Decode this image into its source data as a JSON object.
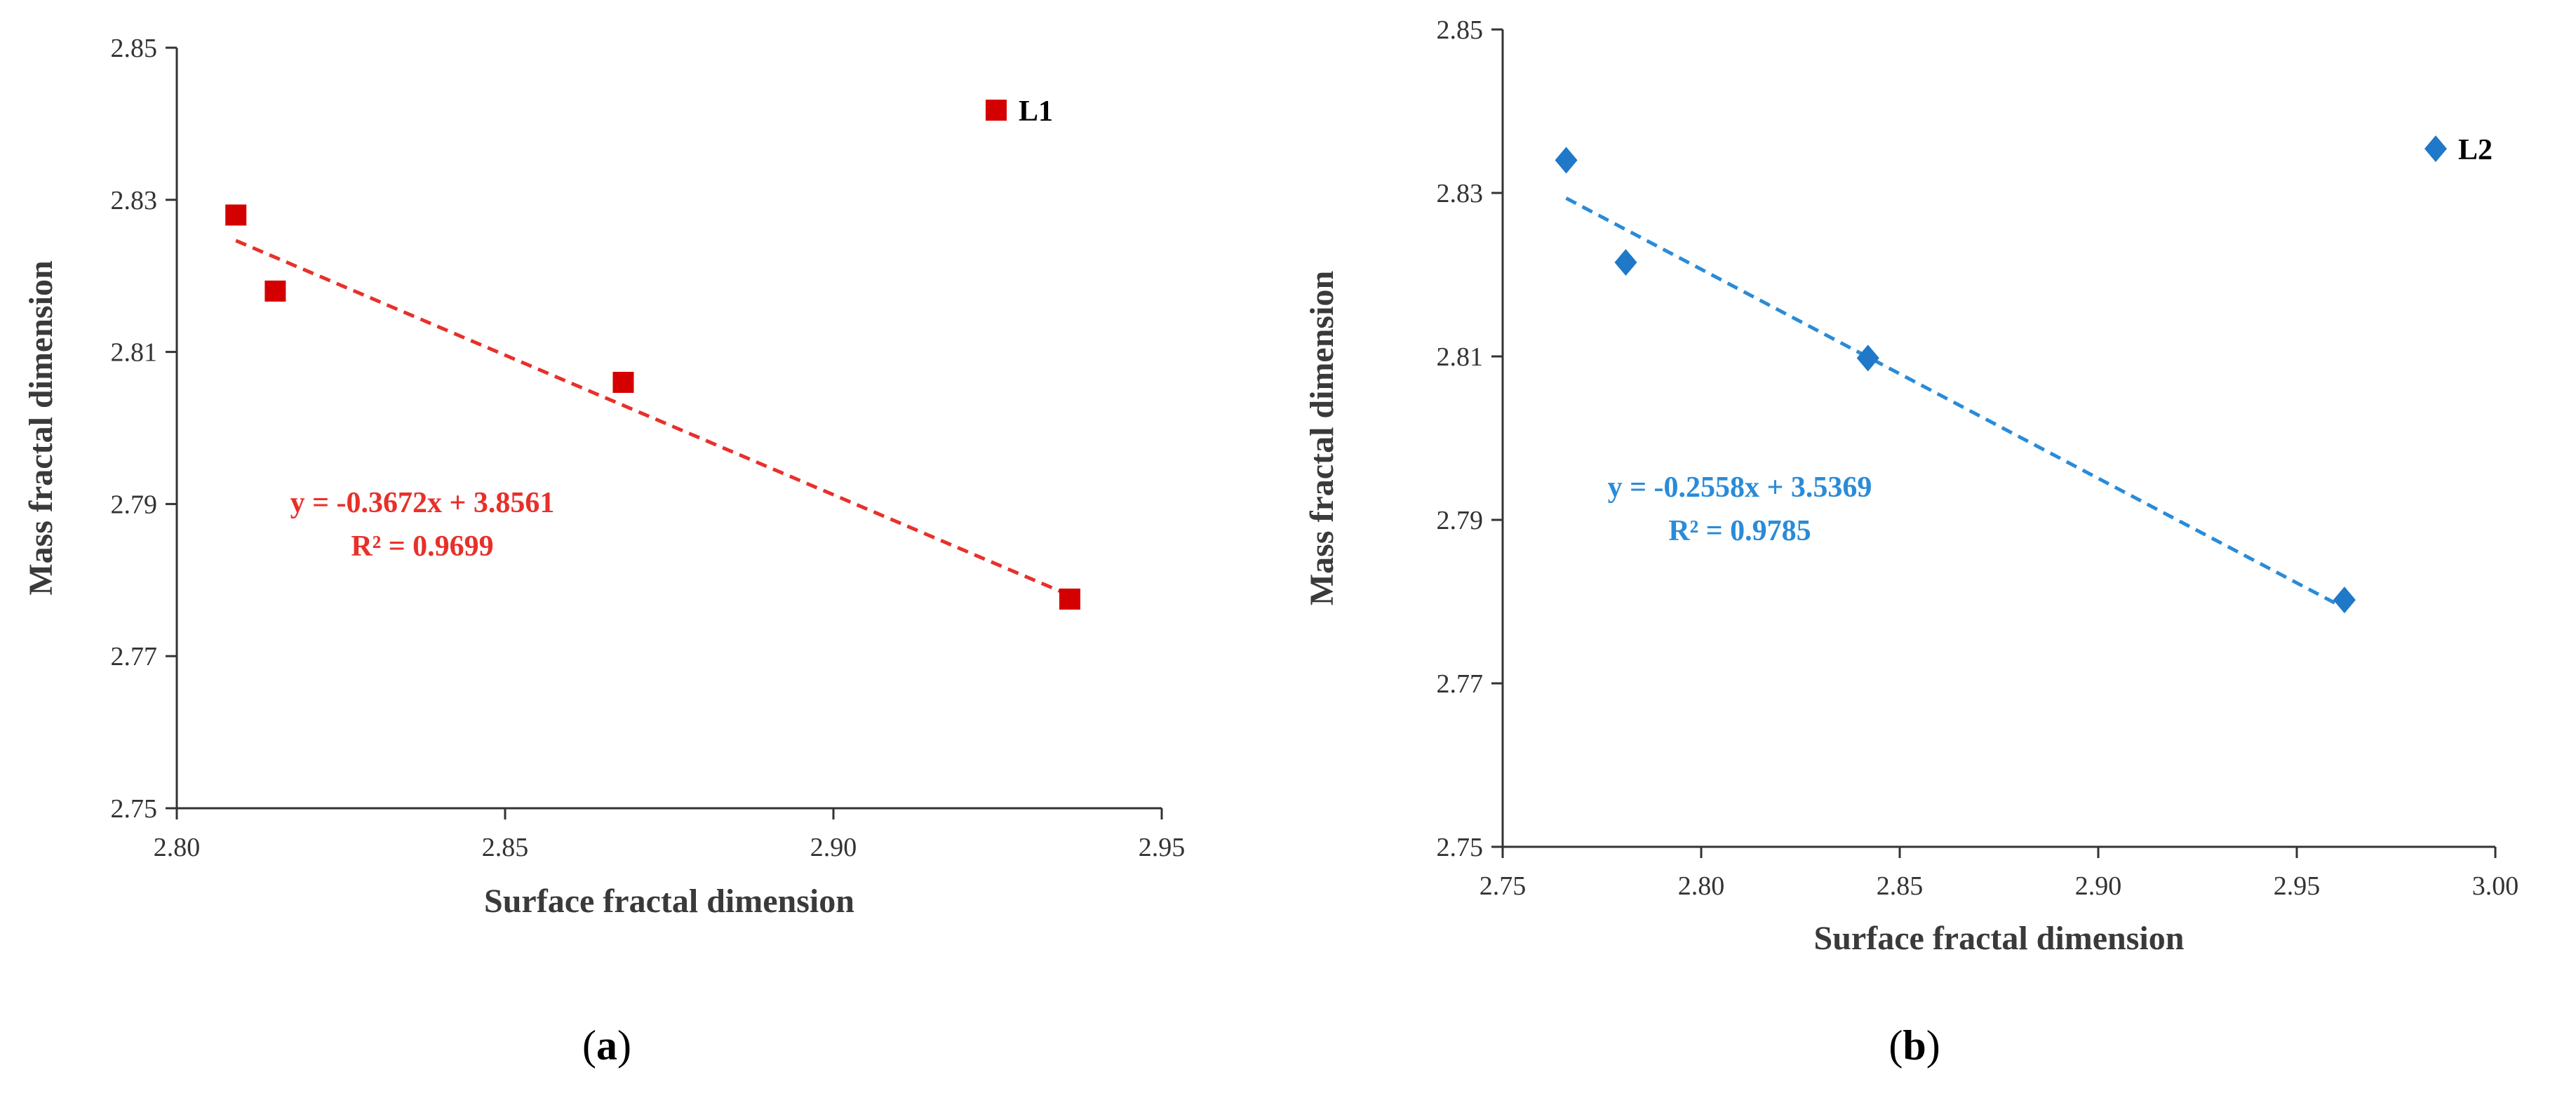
{
  "chart_data": [
    {
      "panel": "a",
      "type": "scatter",
      "xlabel": "Surface fractal dimension",
      "ylabel": "Mass fractal dimension",
      "xlim": [
        2.8,
        2.95
      ],
      "ylim": [
        2.75,
        2.85
      ],
      "xticks": [
        "2.80",
        "2.85",
        "2.90",
        "2.95"
      ],
      "yticks": [
        "2.75",
        "2.77",
        "2.79",
        "2.81",
        "2.83",
        "2.85"
      ],
      "series": [
        {
          "name": "L1",
          "color": "#d40000",
          "marker": "square",
          "x": [
            2.809,
            2.815,
            2.868,
            2.936
          ],
          "y": [
            2.828,
            2.818,
            2.806,
            2.7775
          ]
        }
      ],
      "trendline": {
        "slope": -0.3672,
        "intercept": 3.8561,
        "x_range": [
          2.809,
          2.936
        ],
        "color": "#e8302a",
        "equation": "y = -0.3672x + 3.8561",
        "r2": "R² = 0.9699"
      },
      "legend_position": "top-right",
      "panel_label": {
        "open": "(",
        "letter": "a",
        "close": ")"
      }
    },
    {
      "panel": "b",
      "type": "scatter",
      "xlabel": "Surface fractal dimension",
      "ylabel": "Mass fractal dimension",
      "xlim": [
        2.75,
        3.0
      ],
      "ylim": [
        2.75,
        2.85
      ],
      "xticks": [
        "2.75",
        "2.80",
        "2.85",
        "2.90",
        "2.95",
        "3.00"
      ],
      "yticks": [
        "2.75",
        "2.77",
        "2.79",
        "2.81",
        "2.83",
        "2.85"
      ],
      "series": [
        {
          "name": "L2",
          "color": "#1f78c8",
          "marker": "diamond",
          "x": [
            2.766,
            2.781,
            2.842,
            2.962
          ],
          "y": [
            2.834,
            2.8215,
            2.8098,
            2.7802
          ]
        }
      ],
      "trendline": {
        "slope": -0.2558,
        "intercept": 3.5369,
        "x_range": [
          2.766,
          2.962
        ],
        "color": "#2a8bd8",
        "equation": "y = -0.2558x + 3.5369",
        "r2": "R² = 0.9785"
      },
      "legend_position": "top-right",
      "panel_label": {
        "open": "(",
        "letter": "b",
        "close": ")"
      }
    }
  ]
}
